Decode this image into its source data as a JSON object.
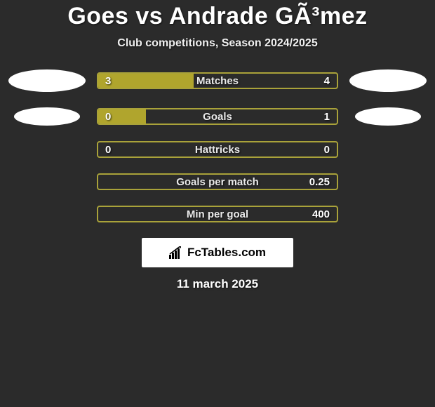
{
  "title": "Goes vs Andrade GÃ³mez",
  "subtitle": "Club competitions, Season 2024/2025",
  "date": "11 march 2025",
  "brand_text": "FcTables.com",
  "colors": {
    "background": "#2b2b2b",
    "bar_border": "#a9a23a",
    "bar_fill": "#b0a52d",
    "ellipse": "#ffffff",
    "brand_bg": "#ffffff",
    "text": "#ffffff"
  },
  "stats": [
    {
      "label": "Matches",
      "left_value": "3",
      "right_value": "4",
      "left_pct": 40,
      "right_pct": 0,
      "show_ellipses": true,
      "ellipse_size": "large"
    },
    {
      "label": "Goals",
      "left_value": "0",
      "right_value": "1",
      "left_pct": 20,
      "right_pct": 0,
      "show_ellipses": true,
      "ellipse_size": "small"
    },
    {
      "label": "Hattricks",
      "left_value": "0",
      "right_value": "0",
      "left_pct": 0,
      "right_pct": 0,
      "show_ellipses": false
    },
    {
      "label": "Goals per match",
      "left_value": "",
      "right_value": "0.25",
      "left_pct": 0,
      "right_pct": 0,
      "show_ellipses": false
    },
    {
      "label": "Min per goal",
      "left_value": "",
      "right_value": "400",
      "left_pct": 0,
      "right_pct": 0,
      "show_ellipses": false
    }
  ]
}
